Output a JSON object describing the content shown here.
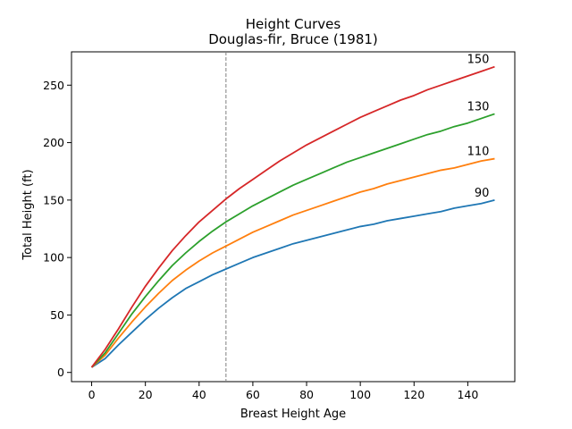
{
  "chart_data": {
    "type": "line",
    "title": "Height Curves",
    "subtitle": "Douglas-fir, Bruce (1981)",
    "xlabel": "Breast Height Age",
    "ylabel": "Total Height (ft)",
    "xlim": [
      -7.5,
      157.5
    ],
    "ylim": [
      -8,
      279
    ],
    "xticks": [
      0,
      20,
      40,
      60,
      80,
      100,
      120,
      140
    ],
    "yticks": [
      0,
      50,
      100,
      150,
      200,
      250
    ],
    "grid": false,
    "reference_line": {
      "x": 50,
      "style": "dashed",
      "color": "#808080"
    },
    "x": [
      0,
      5,
      10,
      15,
      20,
      25,
      30,
      35,
      40,
      45,
      50,
      55,
      60,
      65,
      70,
      75,
      80,
      85,
      90,
      95,
      100,
      105,
      110,
      115,
      120,
      125,
      130,
      135,
      140,
      145,
      150
    ],
    "series": [
      {
        "name": "90",
        "color": "#1f77b4",
        "values": [
          4.5,
          12,
          24,
          35,
          46,
          56,
          65,
          73,
          79,
          85,
          90,
          95,
          100,
          104,
          108,
          112,
          115,
          118,
          121,
          124,
          127,
          129,
          132,
          134,
          136,
          138,
          140,
          143,
          145,
          147,
          150
        ]
      },
      {
        "name": "110",
        "color": "#ff7f0e",
        "values": [
          4.5,
          15,
          30,
          44,
          57,
          69,
          80,
          89,
          97,
          104,
          110,
          116,
          122,
          127,
          132,
          137,
          141,
          145,
          149,
          153,
          157,
          160,
          164,
          167,
          170,
          173,
          176,
          178,
          181,
          184,
          186
        ]
      },
      {
        "name": "130",
        "color": "#2ca02c",
        "values": [
          4.5,
          17,
          34,
          51,
          66,
          80,
          93,
          104,
          114,
          123,
          131,
          138,
          145,
          151,
          157,
          163,
          168,
          173,
          178,
          183,
          187,
          191,
          195,
          199,
          203,
          207,
          210,
          214,
          217,
          221,
          225
        ]
      },
      {
        "name": "150",
        "color": "#d62728",
        "values": [
          4.5,
          20,
          38,
          57,
          75,
          91,
          106,
          119,
          131,
          141,
          151,
          160,
          168,
          176,
          184,
          191,
          198,
          204,
          210,
          216,
          222,
          227,
          232,
          237,
          241,
          246,
          250,
          254,
          258,
          262,
          266
        ]
      }
    ]
  }
}
